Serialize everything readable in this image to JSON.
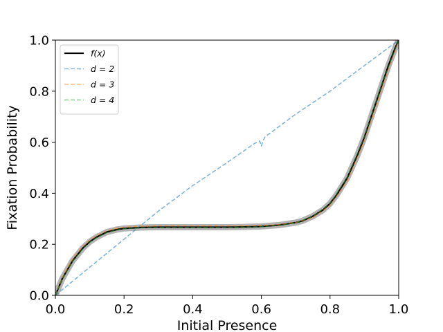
{
  "chart_data": {
    "type": "line",
    "xlabel": "Initial Presence",
    "ylabel": "Fixation Probability",
    "xlim": [
      0.0,
      1.0
    ],
    "ylim": [
      0.0,
      1.0
    ],
    "xticks": [
      "0.0",
      "0.2",
      "0.4",
      "0.6",
      "0.8",
      "1.0"
    ],
    "yticks": [
      "0.0",
      "0.2",
      "0.4",
      "0.6",
      "0.8",
      "1.0"
    ],
    "grid": false,
    "legend_position": "top-left",
    "series": [
      {
        "name": "f(x)",
        "style": "solid",
        "color": "#000000",
        "band": true,
        "x": [
          0.0,
          0.02,
          0.05,
          0.08,
          0.1,
          0.12,
          0.15,
          0.18,
          0.2,
          0.25,
          0.3,
          0.35,
          0.4,
          0.45,
          0.5,
          0.55,
          0.6,
          0.65,
          0.7,
          0.72,
          0.75,
          0.78,
          0.8,
          0.82,
          0.85,
          0.88,
          0.9,
          0.92,
          0.95,
          0.97,
          0.99,
          1.0
        ],
        "y": [
          0.0,
          0.065,
          0.135,
          0.185,
          0.21,
          0.228,
          0.248,
          0.258,
          0.262,
          0.266,
          0.267,
          0.267,
          0.267,
          0.267,
          0.267,
          0.268,
          0.27,
          0.275,
          0.285,
          0.292,
          0.31,
          0.335,
          0.36,
          0.395,
          0.46,
          0.55,
          0.62,
          0.7,
          0.82,
          0.9,
          0.97,
          1.0
        ]
      },
      {
        "name": "d = 2",
        "style": "dashed",
        "color": "#1f77b4",
        "x": [
          0.0,
          0.1,
          0.2,
          0.3,
          0.4,
          0.5,
          0.58,
          0.595,
          0.6,
          0.605,
          0.61,
          0.7,
          0.8,
          0.9,
          1.0
        ],
        "y": [
          0.0,
          0.11,
          0.22,
          0.33,
          0.43,
          0.52,
          0.595,
          0.605,
          0.585,
          0.605,
          0.62,
          0.71,
          0.8,
          0.9,
          1.0
        ]
      },
      {
        "name": "d = 3",
        "style": "dashed",
        "color": "#ff7f0e",
        "x": [
          0.0,
          0.02,
          0.05,
          0.08,
          0.1,
          0.12,
          0.15,
          0.18,
          0.2,
          0.25,
          0.3,
          0.4,
          0.5,
          0.6,
          0.65,
          0.7,
          0.75,
          0.8,
          0.85,
          0.9,
          0.95,
          1.0
        ],
        "y": [
          0.0,
          0.07,
          0.142,
          0.192,
          0.216,
          0.234,
          0.253,
          0.263,
          0.267,
          0.271,
          0.272,
          0.272,
          0.272,
          0.273,
          0.277,
          0.285,
          0.305,
          0.352,
          0.448,
          0.605,
          0.805,
          1.0
        ]
      },
      {
        "name": "d = 4",
        "style": "dashed",
        "color": "#2ca02c",
        "x": [
          0.0,
          0.02,
          0.05,
          0.08,
          0.1,
          0.12,
          0.15,
          0.18,
          0.2,
          0.25,
          0.3,
          0.4,
          0.5,
          0.6,
          0.65,
          0.7,
          0.75,
          0.8,
          0.85,
          0.9,
          0.95,
          1.0
        ],
        "y": [
          0.0,
          0.064,
          0.133,
          0.183,
          0.208,
          0.226,
          0.246,
          0.256,
          0.261,
          0.265,
          0.266,
          0.266,
          0.266,
          0.269,
          0.274,
          0.284,
          0.31,
          0.36,
          0.462,
          0.622,
          0.822,
          1.0
        ]
      }
    ]
  }
}
